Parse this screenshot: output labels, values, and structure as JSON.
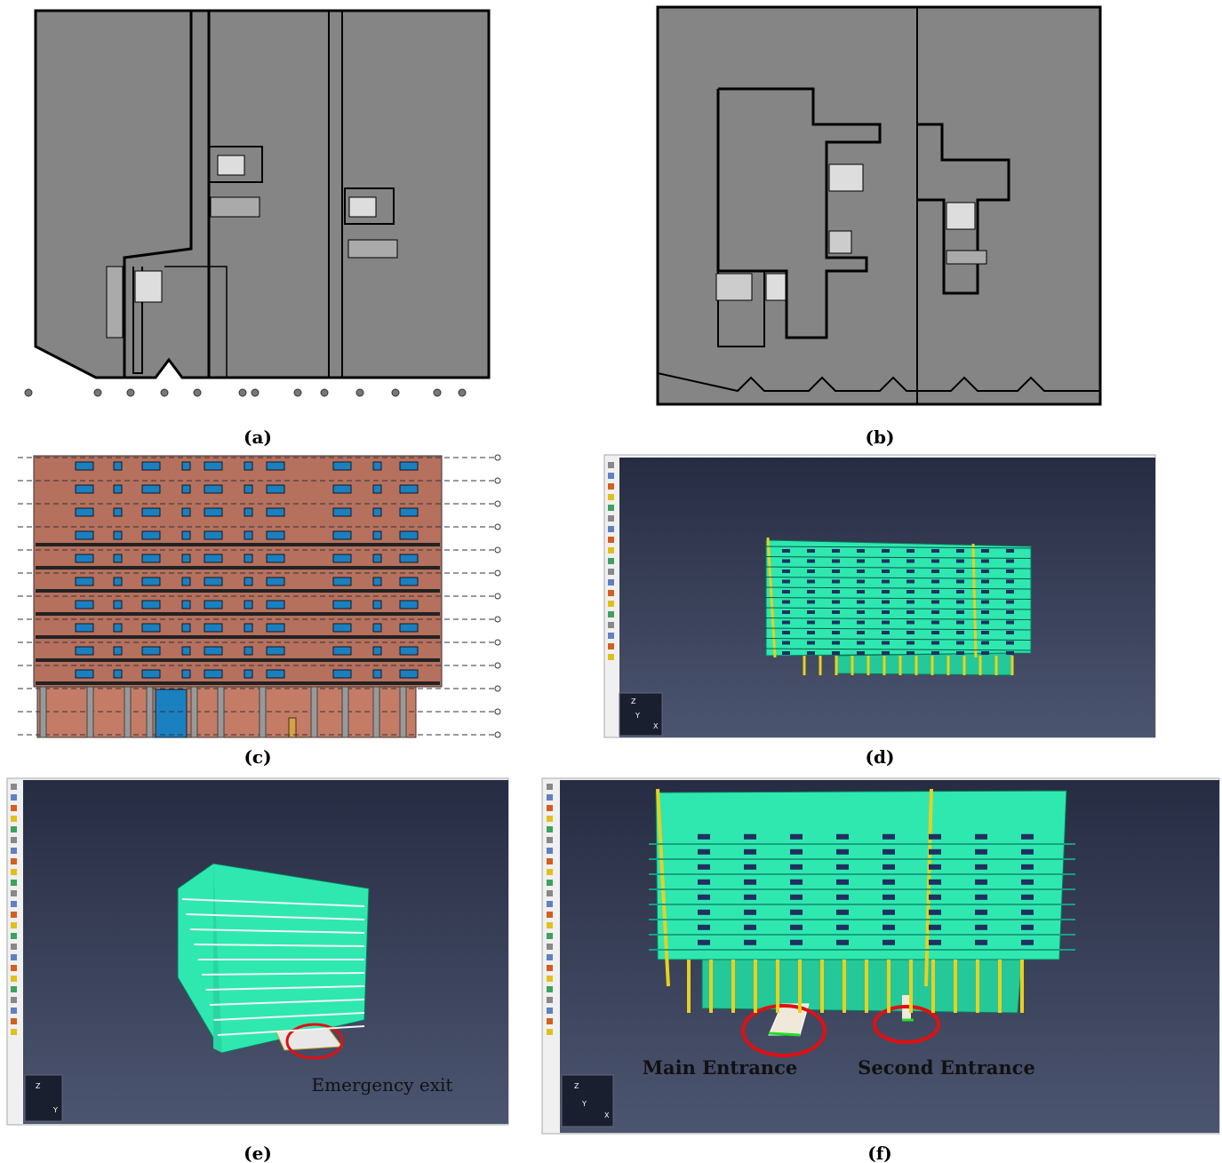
{
  "panels": [
    {
      "label": "(a)"
    },
    {
      "label": "(b)"
    },
    {
      "label": "(c)"
    },
    {
      "label": "(d)",
      "axis_labels": [
        "Z",
        "Y",
        "X"
      ]
    },
    {
      "label": "(e)",
      "axis_labels": [
        "Z",
        "Y"
      ],
      "annotations": [
        "Emergency exit"
      ]
    },
    {
      "label": "(f)",
      "axis_labels": [
        "Z",
        "Y",
        "X"
      ],
      "annotations": [
        "Main Entrance",
        "Second Entrance"
      ]
    }
  ]
}
